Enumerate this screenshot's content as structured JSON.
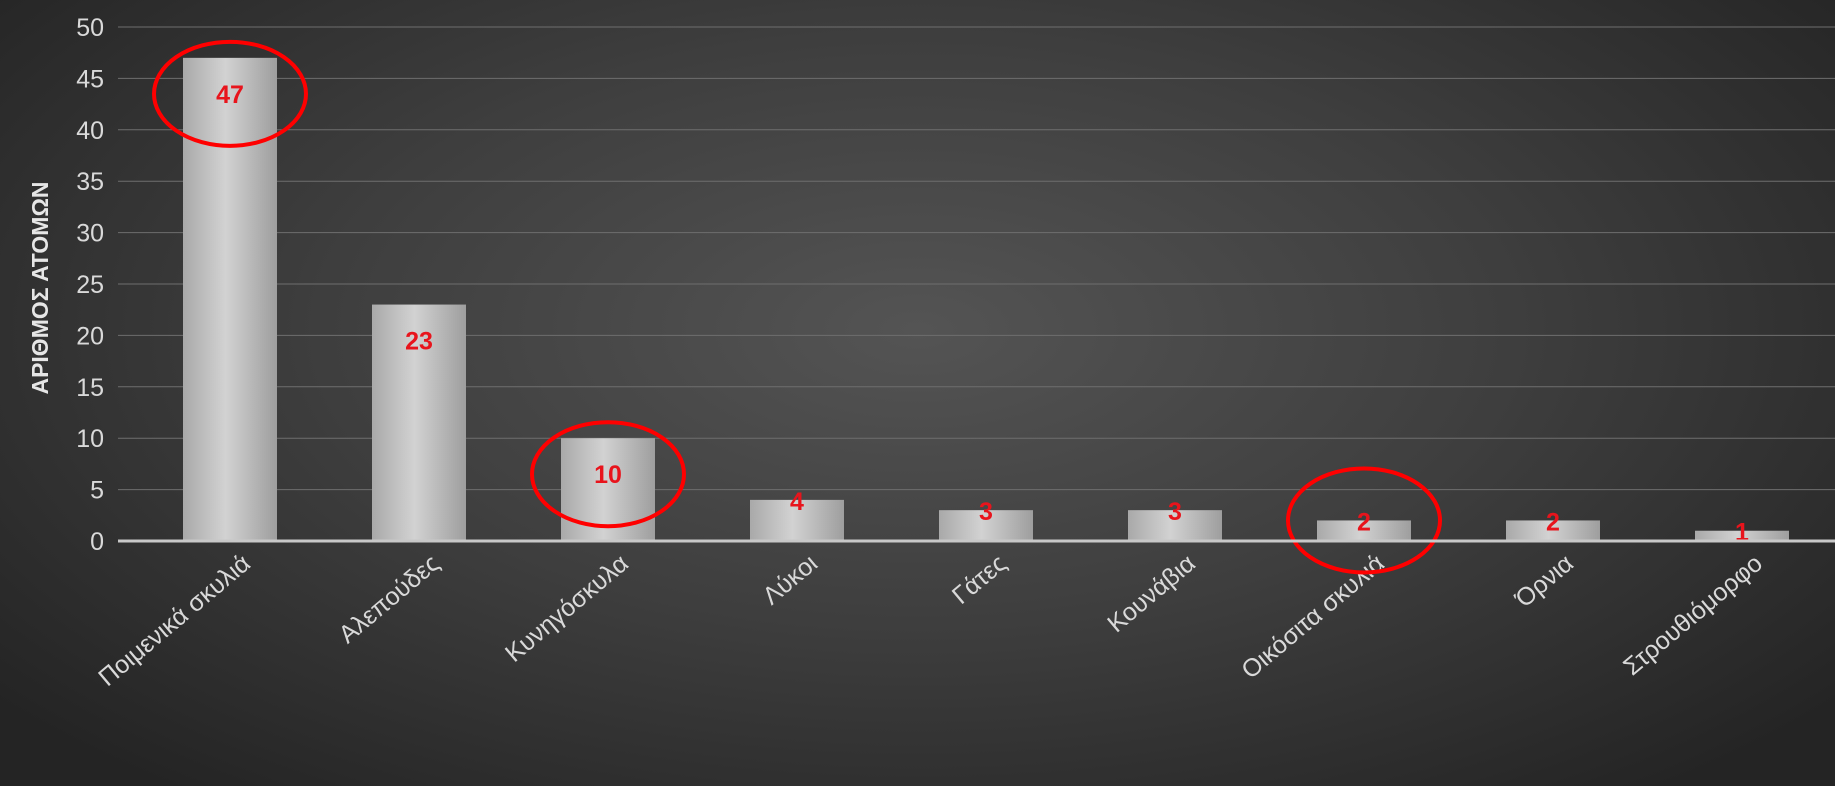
{
  "chart_data": {
    "type": "bar",
    "title": "",
    "xlabel": "",
    "ylabel": "ΑΡΙΘΜΟΣ ΑΤΟΜΩΝ",
    "categories": [
      "Ποιμενικά σκυλιά",
      "Αλεπούδες",
      "Κυνηγόσκυλα",
      "Λύκοι",
      "Γάτες",
      "Κουνάβια",
      "Οικόσιτα σκυλιά",
      "Όρνια",
      "Στρουθιόμορφο"
    ],
    "values": [
      47,
      23,
      10,
      4,
      3,
      3,
      2,
      2,
      1
    ],
    "data_labels": [
      "47",
      "23",
      "10",
      "4",
      "3",
      "3",
      "2",
      "2",
      "1"
    ],
    "ylim": [
      0,
      50
    ],
    "yticks": [
      "0",
      "5",
      "10",
      "15",
      "20",
      "25",
      "30",
      "35",
      "40",
      "45",
      "50"
    ],
    "grid": true,
    "legend": "none",
    "highlighted_categories": [
      "Ποιμενικά σκυλιά",
      "Κυνηγόσκυλα",
      "Οικόσιτα σκυλιά"
    ],
    "colors": {
      "bar": "#bdbdbd",
      "label": "#e8141c",
      "highlight": "#ff0000",
      "gridline": "#6e6e6e",
      "axis": "#c8c8c8"
    }
  }
}
